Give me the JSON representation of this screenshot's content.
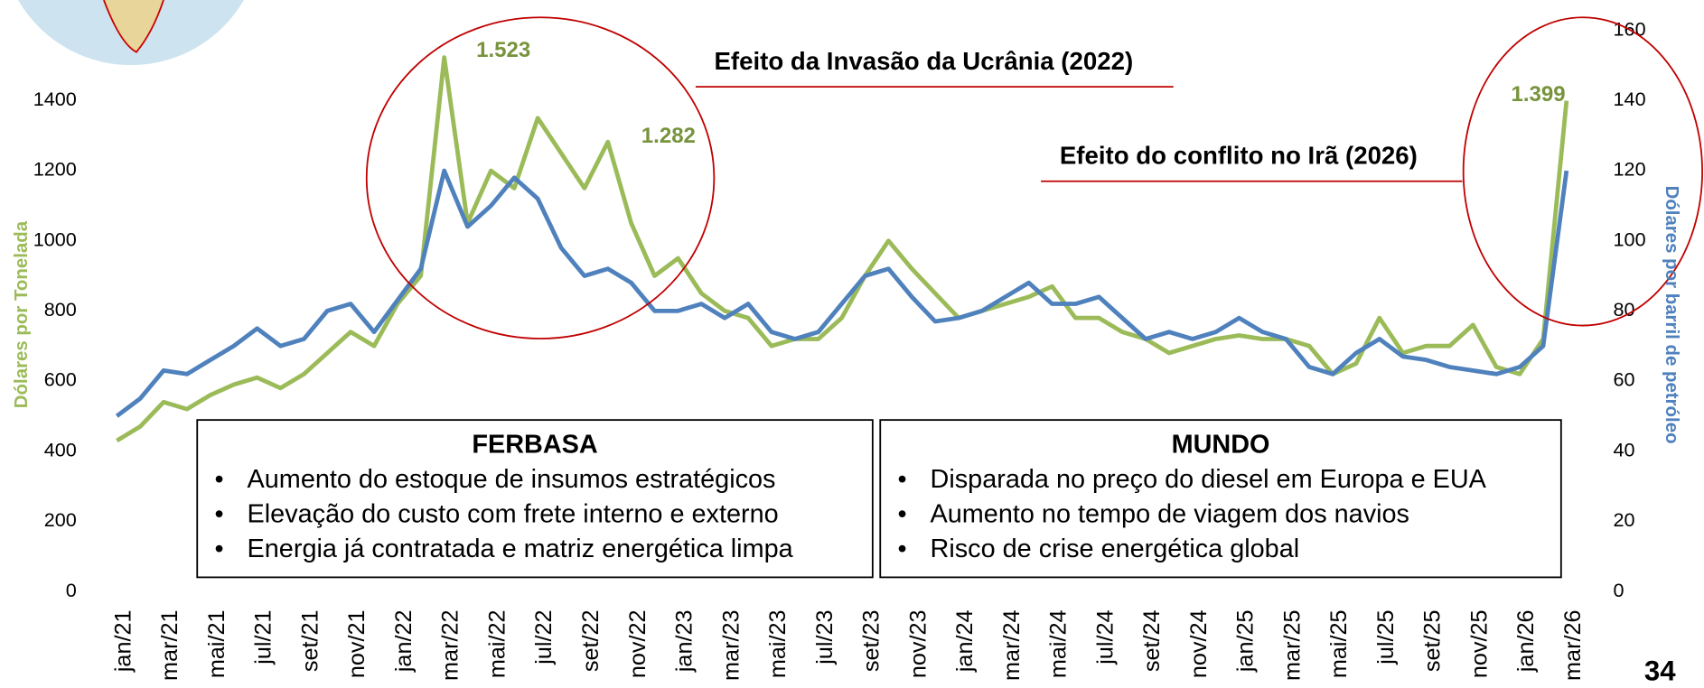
{
  "chart_data": {
    "type": "line",
    "categories": [
      "jan/21",
      null,
      "mar/21",
      null,
      "mai/21",
      null,
      "jul/21",
      null,
      "set/21",
      null,
      "nov/21",
      null,
      "jan/22",
      null,
      "mar/22",
      null,
      "mai/22",
      null,
      "jul/22",
      null,
      "set/22",
      null,
      "nov/22",
      null,
      "jan/23",
      null,
      "mar/23",
      null,
      "mai/23",
      null,
      "jul/23",
      null,
      "set/23",
      null,
      "nov/23",
      null,
      "jan/24",
      null,
      "mar/24",
      null,
      "mai/24",
      null,
      "jul/24",
      null,
      "set/24",
      null,
      "nov/24",
      null,
      "jan/25",
      null,
      "mar/25",
      null,
      "mai/25",
      null,
      "jul/25",
      null,
      "set/25",
      null,
      "nov/25",
      null,
      "jan/26",
      null,
      "mar/26"
    ],
    "series": [
      {
        "name": "Dólares por Tonelada",
        "color": "#9bbb59",
        "values": [
          430,
          470,
          540,
          520,
          560,
          590,
          610,
          580,
          620,
          680,
          740,
          700,
          820,
          900,
          1523,
          1050,
          1200,
          1150,
          1350,
          1250,
          1150,
          1282,
          1050,
          900,
          950,
          850,
          800,
          780,
          700,
          720,
          720,
          780,
          900,
          1000,
          920,
          850,
          780,
          800,
          820,
          840,
          870,
          780,
          780,
          740,
          720,
          680,
          700,
          720,
          730,
          720,
          720,
          700,
          620,
          650,
          780,
          680,
          700,
          700,
          760,
          640,
          620,
          720,
          1399
        ]
      },
      {
        "name": "Dólares por barril de petróleo",
        "color": "#4f81bd",
        "axis": "y2",
        "values": [
          50,
          55,
          63,
          62,
          66,
          70,
          75,
          70,
          72,
          80,
          82,
          74,
          83,
          92,
          120,
          104,
          110,
          118,
          112,
          98,
          90,
          92,
          88,
          80,
          80,
          82,
          78,
          82,
          74,
          72,
          74,
          82,
          90,
          92,
          84,
          77,
          78,
          80,
          84,
          88,
          82,
          82,
          84,
          78,
          72,
          74,
          72,
          74,
          78,
          74,
          72,
          64,
          62,
          68,
          72,
          67,
          66,
          64,
          63,
          62,
          64,
          70,
          120
        ]
      }
    ],
    "ylabel": "Dólares por Tonelada",
    "y2label": "Dólares por barril de petróleo",
    "ylim": [
      0,
      1600
    ],
    "yticks": [
      0,
      200,
      400,
      600,
      800,
      1000,
      1200,
      1400
    ],
    "y2lim": [
      0,
      160
    ],
    "y2ticks": [
      0,
      20,
      40,
      60,
      80,
      100,
      120,
      140,
      160
    ],
    "annotations": [
      "1.523",
      "1.282",
      "1.399",
      "Efeito da Invasão da Ucrânia (2022)",
      "Efeito do conflito no Irã (2026)"
    ],
    "boxes": [
      {
        "title": "FERBASA",
        "items": [
          "Aumento do estoque de insumos estratégicos",
          "Elevação do custo com frete interno e externo",
          "Energia já contratada e matriz energética limpa"
        ]
      },
      {
        "title": "MUNDO",
        "items": [
          "Disparada no preço do diesel em Europa e EUA",
          "Aumento no tempo de viagem dos navios",
          "Risco de crise energética global"
        ]
      }
    ],
    "page_number": "34"
  }
}
